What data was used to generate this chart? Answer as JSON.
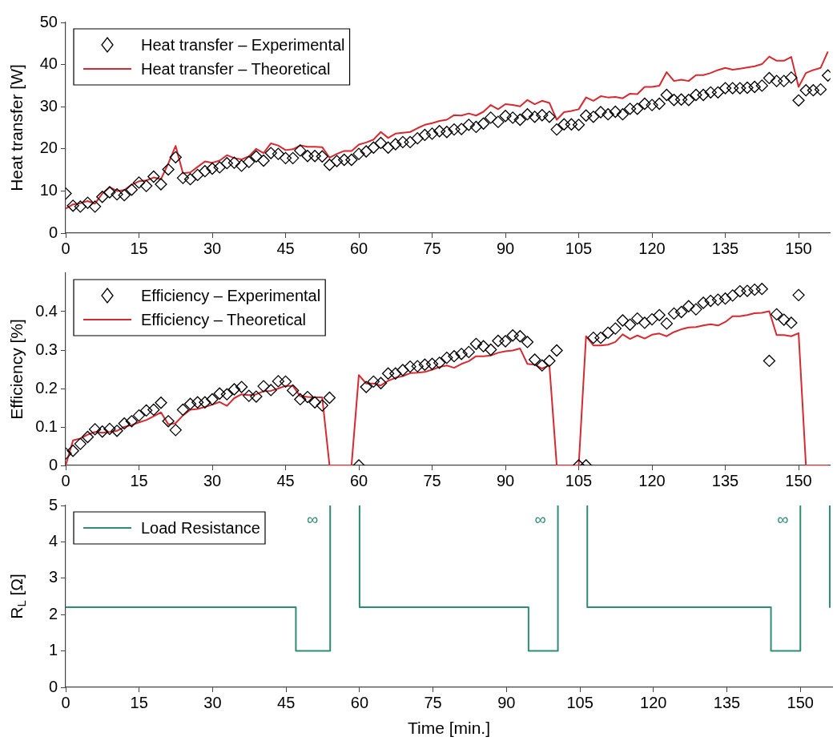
{
  "chart_data": [
    {
      "type": "line",
      "ylabel": "Heat transfer [W]",
      "legend": "top left",
      "xlim": [
        0,
        156.5
      ],
      "xticks": [
        0,
        15,
        30,
        45,
        60,
        75,
        90,
        105,
        120,
        135,
        150
      ],
      "ylim": [
        0,
        50
      ],
      "yticks": [
        0,
        10,
        20,
        30,
        40,
        50
      ],
      "x": [
        0,
        1.5,
        3,
        4.5,
        6,
        7.5,
        9,
        10.5,
        12,
        13.5,
        15,
        16.5,
        18,
        19.5,
        21,
        22.5,
        24,
        25.5,
        27,
        28.5,
        30,
        31.5,
        33,
        34.5,
        36,
        37.5,
        39,
        40.5,
        42,
        43.5,
        45,
        46.5,
        48,
        49.5,
        51,
        52.5,
        54,
        55.5,
        57,
        58.5,
        60,
        61.5,
        63,
        64.5,
        66,
        67.5,
        69,
        70.5,
        72,
        73.5,
        75,
        76.5,
        78,
        79.5,
        81,
        82.5,
        84,
        85.5,
        87,
        88.5,
        90,
        91.5,
        93,
        94.5,
        96,
        97.5,
        99,
        100.5,
        102,
        103.5,
        105,
        106.5,
        108,
        109.5,
        111,
        112.5,
        114,
        115.5,
        117,
        118.5,
        120,
        121.5,
        123,
        124.5,
        126,
        127.5,
        129,
        130.5,
        132,
        133.5,
        135,
        136.5,
        138,
        139.5,
        141,
        142.5,
        144,
        145.5,
        147,
        148.5,
        150,
        151.5,
        153,
        154.5,
        156
      ],
      "series": [
        {
          "name": "Heat transfer – Experimental",
          "type": "scatter",
          "marker": "diamond",
          "color": "#000000",
          "values": [
            9.4,
            6.5,
            6.3,
            7.2,
            6.3,
            8.6,
            9.7,
            9.2,
            9.0,
            10.3,
            12.0,
            11.2,
            13.4,
            11.6,
            15.1,
            18.0,
            13.1,
            12.8,
            13.8,
            14.7,
            15.3,
            15.6,
            16.6,
            16.7,
            16.0,
            16.9,
            18.2,
            17.2,
            19.0,
            18.8,
            17.8,
            17.8,
            19.6,
            18.3,
            18.3,
            18.2,
            16.2,
            17.1,
            17.4,
            17.4,
            18.8,
            19.4,
            20.3,
            21.4,
            20.3,
            21.1,
            21.6,
            21.6,
            22.5,
            23.3,
            23.6,
            24.2,
            24.0,
            24.6,
            24.7,
            25.7,
            25.2,
            26.0,
            27.4,
            26.4,
            27.8,
            27.4,
            26.9,
            28.2,
            27.6,
            28.0,
            27.6,
            24.6,
            25.8,
            25.8,
            25.7,
            27.9,
            27.6,
            28.7,
            28.2,
            28.8,
            28.2,
            29.5,
            29.5,
            30.7,
            30.4,
            30.7,
            32.8,
            31.6,
            31.7,
            31.6,
            32.8,
            32.8,
            33.4,
            33.4,
            34.4,
            34.4,
            34.4,
            34.5,
            34.7,
            35.0,
            36.8,
            36.1,
            36.1,
            36.9,
            31.5,
            33.9,
            33.9,
            34.1,
            37.4
          ]
        },
        {
          "name": "Heat transfer – Theoretical",
          "type": "line",
          "color": "#d62930",
          "values": [
            5.8,
            6.8,
            7.1,
            7.6,
            7.0,
            9.4,
            10.9,
            10.0,
            10.2,
            11.5,
            12.3,
            12.5,
            13.2,
            12.8,
            16.5,
            20.7,
            14.2,
            14.4,
            15.7,
            17.0,
            16.7,
            17.2,
            18.5,
            17.8,
            17.5,
            18.2,
            20.0,
            19.0,
            21.3,
            20.8,
            19.7,
            19.9,
            20.8,
            20.5,
            20.5,
            20.4,
            17.9,
            18.8,
            19.5,
            19.5,
            21.0,
            21.5,
            22.2,
            24.0,
            22.6,
            23.6,
            23.8,
            24.0,
            24.9,
            25.7,
            26.1,
            26.6,
            26.9,
            28.0,
            27.9,
            28.4,
            27.9,
            28.8,
            30.4,
            29.4,
            30.6,
            30.4,
            30.1,
            31.6,
            30.6,
            31.4,
            30.9,
            26.9,
            28.7,
            29.0,
            29.4,
            32.2,
            31.4,
            32.5,
            32.2,
            32.3,
            32.0,
            33.1,
            33.0,
            34.7,
            34.7,
            35.0,
            38.2,
            36.1,
            36.4,
            36.1,
            37.5,
            37.5,
            38.0,
            38.7,
            39.2,
            38.8,
            39.0,
            39.3,
            39.6,
            40.1,
            41.9,
            40.9,
            40.9,
            41.8,
            34.7,
            38.0,
            38.7,
            39.2,
            43.1
          ]
        }
      ]
    },
    {
      "type": "line",
      "ylabel": "Efficiency [%]",
      "legend": "top left",
      "xlim": [
        0,
        156.5
      ],
      "xticks": [
        0,
        15,
        30,
        45,
        60,
        75,
        90,
        105,
        120,
        135,
        150
      ],
      "ylim": [
        0,
        0.5
      ],
      "yticks": [
        0,
        0.1,
        0.2,
        0.3,
        0.4
      ],
      "x": [
        0,
        1.5,
        3,
        4.5,
        6,
        7.5,
        9,
        10.5,
        12,
        13.5,
        15,
        16.5,
        18,
        19.5,
        21,
        22.5,
        24,
        25.5,
        27,
        28.5,
        30,
        31.5,
        33,
        34.5,
        36,
        37.5,
        39,
        40.5,
        42,
        43.5,
        45,
        46.5,
        48,
        49.5,
        51,
        52.5,
        54,
        55.5,
        57,
        58.5,
        60,
        61.5,
        63,
        64.5,
        66,
        67.5,
        69,
        70.5,
        72,
        73.5,
        75,
        76.5,
        78,
        79.5,
        81,
        82.5,
        84,
        85.5,
        87,
        88.5,
        90,
        91.5,
        93,
        94.5,
        96,
        97.5,
        99,
        100.5,
        102,
        103.5,
        105,
        106.5,
        108,
        109.5,
        111,
        112.5,
        114,
        115.5,
        117,
        118.5,
        120,
        121.5,
        123,
        124.5,
        126,
        127.5,
        129,
        130.5,
        132,
        133.5,
        135,
        136.5,
        138,
        139.5,
        141,
        142.5,
        144,
        145.5,
        147,
        148.5,
        150,
        151.5,
        153,
        154.5,
        156
      ],
      "series": [
        {
          "name": "Efficiency – Experimental",
          "type": "scatter",
          "marker": "diamond",
          "color": "#000000",
          "values": [
            0.031,
            0.038,
            0.056,
            0.074,
            0.094,
            0.088,
            0.095,
            0.09,
            0.109,
            0.115,
            0.13,
            0.143,
            0.145,
            0.163,
            0.115,
            0.092,
            0.145,
            0.16,
            0.164,
            0.164,
            0.172,
            0.187,
            0.185,
            0.198,
            0.204,
            0.181,
            0.179,
            0.206,
            0.196,
            0.219,
            0.218,
            0.195,
            0.172,
            0.178,
            0.164,
            0.156,
            0.176,
            null,
            null,
            null,
            0,
            0.204,
            0.218,
            0.214,
            0.239,
            0.239,
            0.248,
            0.257,
            0.258,
            0.262,
            0.264,
            0.267,
            0.28,
            0.284,
            0.29,
            0.295,
            0.316,
            0.31,
            0.301,
            0.324,
            0.323,
            0.338,
            0.336,
            0.321,
            0.275,
            0.26,
            0.272,
            0.299,
            null,
            null,
            0,
            0,
            0.332,
            0.332,
            0.345,
            0.356,
            0.377,
            0.366,
            0.382,
            0.371,
            0.38,
            0.391,
            0.369,
            0.395,
            0.399,
            0.414,
            0.406,
            0.423,
            0.428,
            0.431,
            0.434,
            0.442,
            0.453,
            0.454,
            0.457,
            0.459,
            0.272,
            0.393,
            0.379,
            0.371,
            0.443,
            null,
            null,
            null,
            null
          ]
        },
        {
          "name": "Efficiency – Theoretical",
          "type": "line",
          "color": "#d62930",
          "values": [
            0,
            0.065,
            0.07,
            0.08,
            0.087,
            0.085,
            0.087,
            0.09,
            0.1,
            0.105,
            0.112,
            0.118,
            0.128,
            0.138,
            0.107,
            0.11,
            0.13,
            0.145,
            0.147,
            0.152,
            0.158,
            0.165,
            0.155,
            0.175,
            0.185,
            0.183,
            0.185,
            0.193,
            0.194,
            0.2,
            0.207,
            0.207,
            0.18,
            0.178,
            0.177,
            0.177,
            0,
            0,
            0,
            0,
            0.235,
            0.213,
            0.213,
            0.208,
            0.22,
            0.228,
            0.232,
            0.24,
            0.241,
            0.243,
            0.249,
            0.256,
            0.26,
            0.254,
            0.264,
            0.271,
            0.284,
            0.284,
            0.286,
            0.293,
            0.297,
            0.299,
            0.304,
            0.264,
            0.262,
            0.252,
            0.26,
            0,
            0,
            0,
            0,
            0.336,
            0.312,
            0.312,
            0.314,
            0.321,
            0.341,
            0.329,
            0.338,
            0.33,
            0.34,
            0.343,
            0.336,
            0.347,
            0.354,
            0.359,
            0.36,
            0.364,
            0.367,
            0.364,
            0.373,
            0.388,
            0.388,
            0.391,
            0.396,
            0.397,
            0.401,
            0.339,
            0.339,
            0.336,
            0.344,
            0,
            0,
            0,
            0
          ]
        }
      ]
    },
    {
      "type": "line",
      "xlabel": "Time [min.]",
      "ylabel": "R$_{L}$ [Ω]",
      "legend": "top left",
      "xlim": [
        0,
        156.5
      ],
      "xticks": [
        0,
        15,
        30,
        45,
        60,
        75,
        90,
        105,
        120,
        135,
        150
      ],
      "ylim": [
        0,
        5
      ],
      "yticks": [
        0,
        1,
        2,
        3,
        4,
        5
      ],
      "series": [
        {
          "name": "Load Resistance",
          "type": "line",
          "color": "#2e8b74",
          "x": [
            0,
            47,
            47,
            54,
            54
          ],
          "values": [
            2.2,
            2.2,
            1,
            1,
            5
          ]
        },
        {
          "type": "line",
          "color": "#2e8b74",
          "x": [
            60,
            60,
            94.5,
            94.5,
            100.5,
            100.5
          ],
          "values": [
            5,
            2.2,
            2.2,
            1,
            1,
            5
          ]
        },
        {
          "type": "line",
          "color": "#2e8b74",
          "x": [
            106.5,
            106.5,
            144,
            144,
            150,
            150
          ],
          "values": [
            5,
            2.2,
            2.2,
            1,
            1,
            5
          ]
        },
        {
          "type": "line",
          "color": "#2e8b74",
          "x": [
            156,
            156
          ],
          "values": [
            5,
            2.2
          ]
        }
      ],
      "annotations": [
        {
          "text": "∞",
          "x": 54,
          "y": 5
        },
        {
          "text": "∞",
          "x": 100.5,
          "y": 5
        },
        {
          "text": "∞",
          "x": 150,
          "y": 5
        }
      ]
    }
  ]
}
